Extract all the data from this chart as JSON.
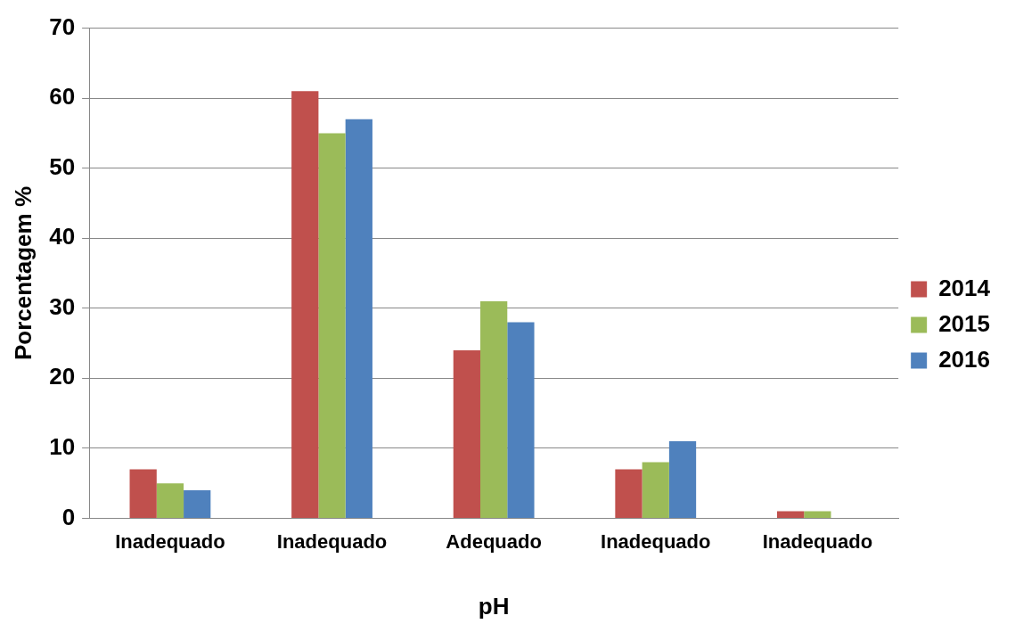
{
  "chart_data": {
    "type": "bar",
    "xlabel": "pH",
    "ylabel": "Porcentagem %",
    "categories": [
      "Inadequado",
      "Inadequado",
      "Adequado",
      "Inadequado",
      "Inadequado"
    ],
    "series": [
      {
        "name": "2014",
        "color": "#c0504d",
        "values": [
          7,
          61,
          24,
          7,
          1
        ]
      },
      {
        "name": "2015",
        "color": "#9bbb59",
        "values": [
          5,
          55,
          31,
          8,
          1
        ]
      },
      {
        "name": "2016",
        "color": "#4f81bd",
        "values": [
          4,
          57,
          28,
          11,
          0
        ]
      }
    ],
    "ylim": [
      0,
      70
    ],
    "yticks": [
      0,
      10,
      20,
      30,
      40,
      50,
      60,
      70
    ],
    "grid": "y",
    "legend": "right"
  }
}
